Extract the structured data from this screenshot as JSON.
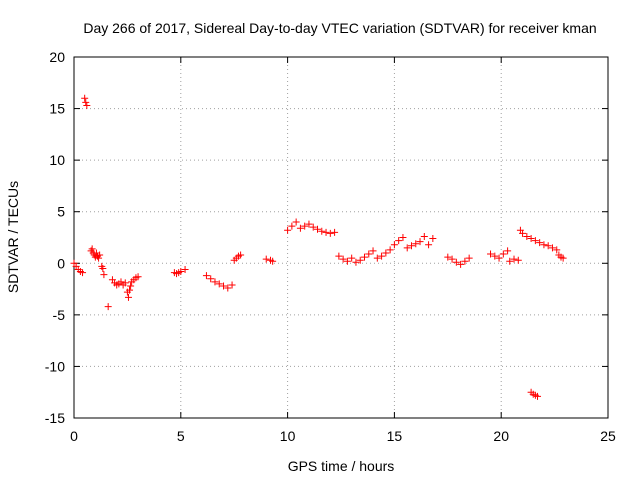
{
  "chart_data": {
    "type": "scatter",
    "title": "Day 266 of 2017, Sidereal Day-to-day VTEC variation (SDTVAR) for receiver kman",
    "xlabel": "GPS time / hours",
    "ylabel": "SDTVAR / TECUs",
    "xlim": [
      0,
      25
    ],
    "ylim": [
      -15,
      20
    ],
    "xticks": [
      "0",
      "5",
      "10",
      "15",
      "20",
      "25"
    ],
    "yticks": [
      "-15",
      "-10",
      "-5",
      "0",
      "5",
      "10",
      "15",
      "20"
    ],
    "grid": true,
    "marker": "+",
    "color": "#ff0000",
    "series": [
      {
        "name": "SDTVAR",
        "segments": [
          {
            "x": [
              0.0,
              0.1,
              0.2,
              0.3,
              0.4
            ],
            "y": [
              0.0,
              -0.3,
              -0.6,
              -0.8,
              -0.9
            ]
          },
          {
            "x": [
              0.5,
              0.55,
              0.6
            ],
            "y": [
              16.0,
              15.6,
              15.3
            ]
          },
          {
            "x": [
              0.8,
              0.85,
              0.9,
              0.95,
              1.0,
              1.05,
              1.1,
              1.15,
              1.2
            ],
            "y": [
              1.2,
              1.4,
              1.0,
              0.8,
              0.6,
              1.0,
              0.7,
              0.5,
              0.8
            ]
          },
          {
            "x": [
              1.3,
              1.35,
              1.4
            ],
            "y": [
              -0.3,
              -0.5,
              -1.1
            ]
          },
          {
            "x": [
              1.6
            ],
            "y": [
              -4.2
            ]
          },
          {
            "x": [
              1.8,
              1.9,
              2.0,
              2.1,
              2.2,
              2.3,
              2.4
            ],
            "y": [
              -1.6,
              -1.9,
              -2.1,
              -2.0,
              -1.8,
              -2.1,
              -1.9
            ]
          },
          {
            "x": [
              2.5,
              2.55,
              2.6,
              2.65
            ],
            "y": [
              -2.8,
              -3.3,
              -2.6,
              -2.2
            ]
          },
          {
            "x": [
              2.7,
              2.8,
              2.9,
              3.0
            ],
            "y": [
              -1.8,
              -1.6,
              -1.4,
              -1.3
            ]
          },
          {
            "x": [
              4.7,
              4.8,
              4.9,
              5.0
            ],
            "y": [
              -0.9,
              -1.0,
              -0.9,
              -0.8
            ]
          },
          {
            "x": [
              5.2
            ],
            "y": [
              -0.6
            ]
          },
          {
            "x": [
              6.2,
              6.4,
              6.6,
              6.8,
              7.0,
              7.2,
              7.4
            ],
            "y": [
              -1.2,
              -1.5,
              -1.8,
              -2.0,
              -2.2,
              -2.4,
              -2.1
            ]
          },
          {
            "x": [
              7.5,
              7.6,
              7.7,
              7.8
            ],
            "y": [
              0.3,
              0.5,
              0.7,
              0.8
            ]
          },
          {
            "x": [
              9.0,
              9.2,
              9.3
            ],
            "y": [
              0.4,
              0.3,
              0.2
            ]
          },
          {
            "x": [
              10.0,
              10.2,
              10.4,
              10.6,
              10.8,
              11.0,
              11.2,
              11.4,
              11.6,
              11.8,
              12.0,
              12.2
            ],
            "y": [
              3.2,
              3.6,
              4.0,
              3.4,
              3.6,
              3.8,
              3.5,
              3.3,
              3.1,
              3.0,
              2.9,
              3.0
            ]
          },
          {
            "x": [
              12.4,
              12.6,
              12.8,
              13.0,
              13.2,
              13.4,
              13.6,
              13.8,
              14.0
            ],
            "y": [
              0.7,
              0.4,
              0.2,
              0.5,
              0.1,
              0.3,
              0.6,
              0.9,
              1.2
            ]
          },
          {
            "x": [
              14.2,
              14.4,
              14.6,
              14.8,
              15.0,
              15.2,
              15.4
            ],
            "y": [
              0.5,
              0.7,
              1.0,
              1.3,
              1.8,
              2.2,
              2.5
            ]
          },
          {
            "x": [
              15.6,
              15.8,
              16.0,
              16.2
            ],
            "y": [
              1.5,
              1.7,
              1.9,
              2.1
            ]
          },
          {
            "x": [
              16.4,
              16.6,
              16.8
            ],
            "y": [
              2.6,
              1.8,
              2.4
            ]
          },
          {
            "x": [
              17.5,
              17.7,
              17.9,
              18.1,
              18.3,
              18.5
            ],
            "y": [
              0.6,
              0.4,
              0.1,
              -0.1,
              0.2,
              0.5
            ]
          },
          {
            "x": [
              19.5,
              19.7,
              19.9,
              20.1,
              20.3
            ],
            "y": [
              0.9,
              0.7,
              0.5,
              0.9,
              1.2
            ]
          },
          {
            "x": [
              20.4,
              20.6,
              20.8
            ],
            "y": [
              0.2,
              0.4,
              0.3
            ]
          },
          {
            "x": [
              20.9,
              21.0,
              21.2,
              21.4,
              21.6,
              21.8,
              22.0,
              22.2,
              22.4,
              22.6
            ],
            "y": [
              3.2,
              2.9,
              2.6,
              2.4,
              2.2,
              2.0,
              1.8,
              1.7,
              1.5,
              1.3
            ]
          },
          {
            "x": [
              22.7,
              22.8,
              22.9
            ],
            "y": [
              0.8,
              0.6,
              0.5
            ]
          },
          {
            "x": [
              21.4,
              21.5,
              21.6,
              21.7
            ],
            "y": [
              -12.5,
              -12.7,
              -12.8,
              -12.9
            ]
          }
        ]
      }
    ]
  }
}
